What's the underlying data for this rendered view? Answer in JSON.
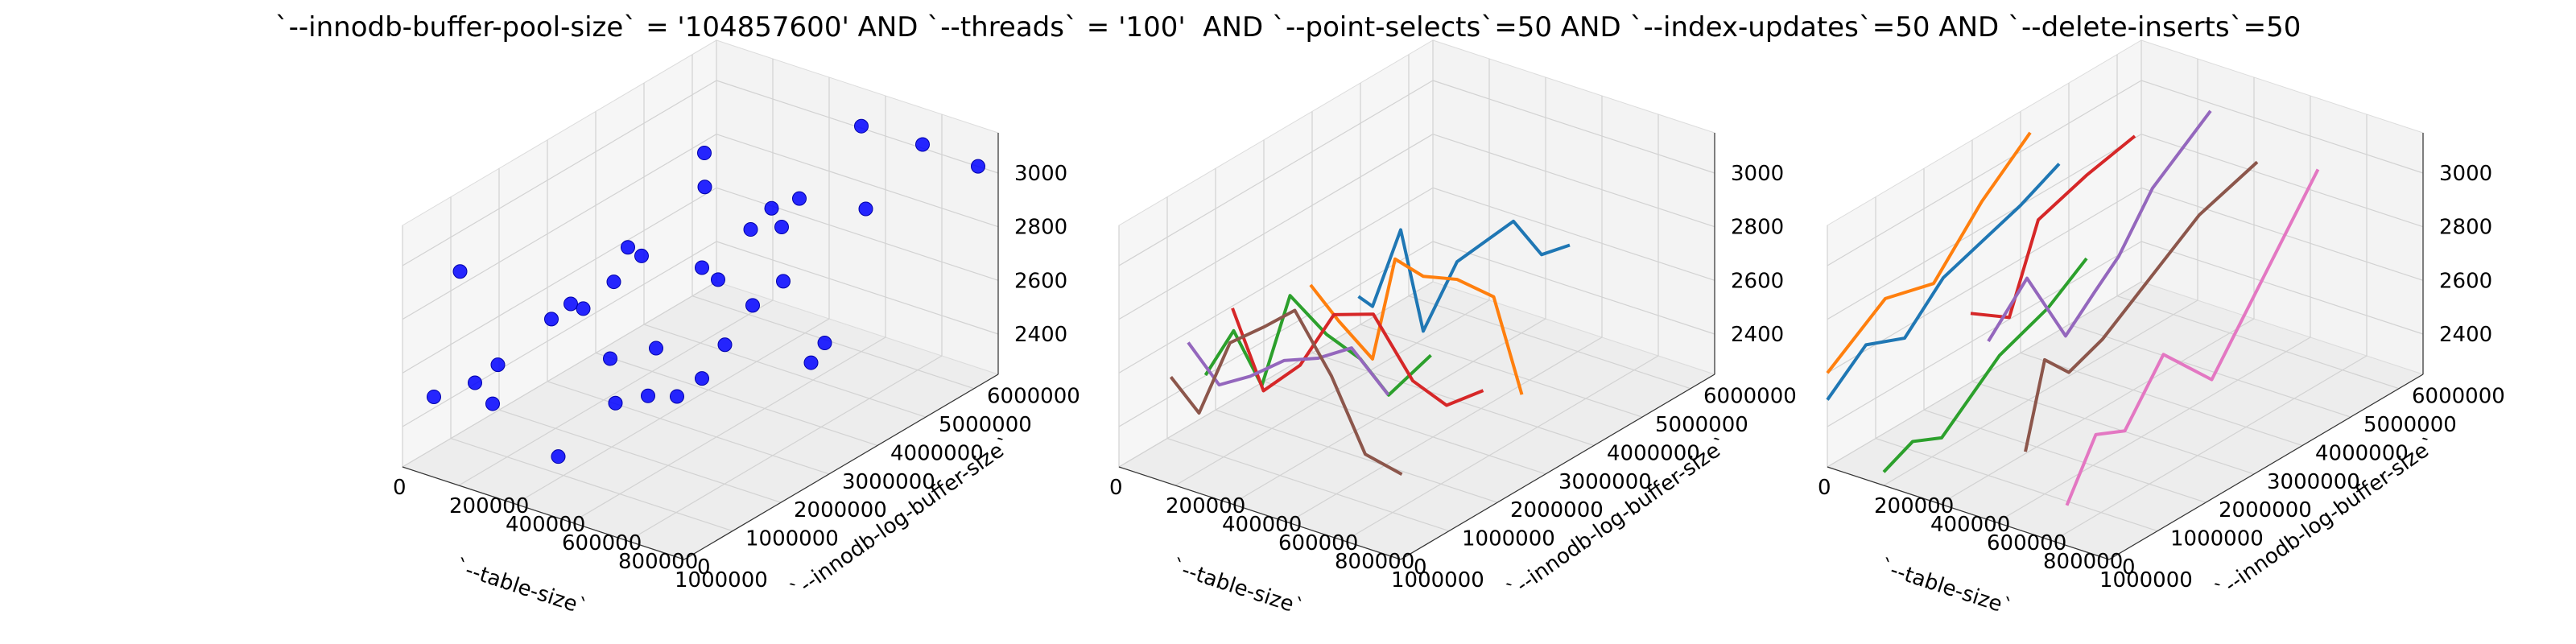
{
  "title": "`--innodb-buffer-pool-size` = '104857600' AND `--threads` = '100'  AND `--point-selects`=50 AND `--index-updates`=50 AND `--delete-inserts`=50",
  "chart_data": [
    {
      "type": "scatter",
      "projection": "3d",
      "xlabel": "`--table-size`",
      "ylabel": "`--innodb-log-buffer-size`",
      "zlabel": "",
      "xticks": [
        "0",
        "200000",
        "400000",
        "600000",
        "800000",
        "1000000"
      ],
      "yticks": [
        "0",
        "1000000",
        "2000000",
        "3000000",
        "4000000",
        "5000000",
        "6000000"
      ],
      "zticks": [
        "2400",
        "2600",
        "2800",
        "3000"
      ],
      "xlim": [
        0,
        1000000
      ],
      "ylim": [
        0,
        6500000
      ],
      "zlim": [
        2250,
        3150
      ],
      "color": "#0000ff",
      "points": [
        [
          50000,
          900000,
          2900
        ],
        [
          120000,
          800000,
          2520
        ],
        [
          200000,
          700000,
          2480
        ],
        [
          100000,
          2500000,
          2570
        ],
        [
          220000,
          2200000,
          2700
        ],
        [
          350000,
          1700000,
          2780
        ],
        [
          480000,
          1500000,
          2660
        ],
        [
          550000,
          1200000,
          2550
        ],
        [
          700000,
          1000000,
          2650
        ],
        [
          820000,
          900000,
          2700
        ],
        [
          30000,
          1800000,
          2450
        ],
        [
          150000,
          3500000,
          2620
        ],
        [
          300000,
          3200000,
          2800
        ],
        [
          420000,
          2800000,
          2540
        ],
        [
          600000,
          2700000,
          2500
        ],
        [
          750000,
          2300000,
          2720
        ],
        [
          900000,
          2000000,
          2950
        ],
        [
          80000,
          4200000,
          2650
        ],
        [
          250000,
          4800000,
          2870
        ],
        [
          400000,
          4200000,
          2640
        ],
        [
          550000,
          4000000,
          2900
        ],
        [
          700000,
          3800000,
          2780
        ],
        [
          850000,
          3500000,
          2560
        ],
        [
          950000,
          3200000,
          2700
        ],
        [
          180000,
          5200000,
          2930
        ],
        [
          350000,
          5600000,
          2740
        ],
        [
          500000,
          5300000,
          2860
        ],
        [
          650000,
          5800000,
          2820
        ],
        [
          800000,
          6100000,
          3080
        ],
        [
          980000,
          6200000,
          3050
        ],
        [
          600000,
          6000000,
          3090
        ],
        [
          300000,
          6100000,
          2600
        ],
        [
          120000,
          5500000,
          2450
        ],
        [
          450000,
          600000,
          2380
        ],
        [
          60000,
          300000,
          2500
        ]
      ]
    },
    {
      "type": "line",
      "projection": "3d",
      "xlabel": "`--table-size`",
      "ylabel": "`--innodb-log-buffer-size`",
      "zlabel": "",
      "xticks": [
        "0",
        "200000",
        "400000",
        "600000",
        "800000",
        "1000000"
      ],
      "yticks": [
        "0",
        "1000000",
        "2000000",
        "3000000",
        "4000000",
        "5000000",
        "6000000"
      ],
      "zticks": [
        "2400",
        "2600",
        "2800",
        "3000"
      ],
      "xlim": [
        0,
        1000000
      ],
      "ylim": [
        0,
        6500000
      ],
      "zlim": [
        2250,
        3150
      ],
      "series": [
        {
          "color": "#1f77b4",
          "x": [
            250000,
            300000,
            400000,
            480000,
            600000,
            700000,
            800000,
            900000,
            1000000
          ],
          "y": [
            3500000,
            3500000,
            3500000,
            3500000,
            3500000,
            3500000,
            3500000,
            3500000,
            3500000
          ],
          "z": [
            2600,
            2580,
            2900,
            2550,
            2850,
            2960,
            3070,
            2980,
            3050
          ]
        },
        {
          "color": "#ff7f0e",
          "x": [
            200000,
            300000,
            420000,
            500000,
            600000,
            720000,
            850000,
            950000
          ],
          "y": [
            2800000,
            2800000,
            2800000,
            2800000,
            2800000,
            2800000,
            2800000,
            2800000
          ],
          "z": [
            2700,
            2600,
            2500,
            2900,
            2870,
            2900,
            2880,
            2550
          ]
        },
        {
          "color": "#2ca02c",
          "x": [
            50000,
            150000,
            250000,
            350000,
            480000,
            600000,
            700000,
            850000
          ],
          "y": [
            1500000,
            1500000,
            1500000,
            1500000,
            1500000,
            1500000,
            1500000,
            1500000
          ],
          "z": [
            2450,
            2650,
            2480,
            2850,
            2750,
            2700,
            2600,
            2800
          ]
        },
        {
          "color": "#d62728",
          "x": [
            60000,
            170000,
            300000,
            420000,
            560000,
            700000,
            820000,
            950000
          ],
          "y": [
            2000000,
            2000000,
            2000000,
            2000000,
            2000000,
            2000000,
            2000000,
            2000000
          ],
          "z": [
            2650,
            2380,
            2520,
            2750,
            2800,
            2600,
            2550,
            2650
          ]
        },
        {
          "color": "#9467bd",
          "x": [
            40000,
            150000,
            260000,
            380000,
            500000,
            620000,
            750000
          ],
          "y": [
            1200000,
            1200000,
            1200000,
            1200000,
            1200000,
            1200000,
            1200000
          ],
          "z": [
            2600,
            2480,
            2550,
            2650,
            2700,
            2780,
            2650
          ]
        },
        {
          "color": "#8c564b",
          "x": [
            30000,
            130000,
            240000,
            360000,
            470000,
            600000,
            720000,
            850000
          ],
          "y": [
            900000,
            900000,
            900000,
            900000,
            900000,
            900000,
            900000,
            900000
          ],
          "z": [
            2500,
            2400,
            2700,
            2800,
            2900,
            2700,
            2450,
            2420
          ]
        }
      ]
    },
    {
      "type": "line",
      "projection": "3d",
      "xlabel": "`--table-size`",
      "ylabel": "`--innodb-log-buffer-size`",
      "zlabel": "",
      "xticks": [
        "0",
        "200000",
        "400000",
        "600000",
        "800000",
        "1000000"
      ],
      "yticks": [
        "0",
        "1000000",
        "2000000",
        "3000000",
        "4000000",
        "5000000",
        "6000000"
      ],
      "zticks": [
        "2400",
        "2600",
        "2800",
        "3000"
      ],
      "xlim": [
        0,
        1000000
      ],
      "ylim": [
        0,
        6500000
      ],
      "zlim": [
        2250,
        3150
      ],
      "series": [
        {
          "color": "#1f77b4",
          "x": [
            0,
            0,
            0,
            0,
            0,
            0,
            0
          ],
          "y": [
            0,
            800000,
            1600000,
            2400000,
            3200000,
            4000000,
            4800000
          ],
          "z": [
            2500,
            2620,
            2560,
            2700,
            2750,
            2800,
            2870
          ]
        },
        {
          "color": "#ff7f0e",
          "x": [
            0,
            0,
            0,
            0,
            0
          ],
          "y": [
            0,
            1200000,
            2200000,
            3200000,
            4200000
          ],
          "z": [
            2600,
            2750,
            2700,
            2900,
            3050
          ]
        },
        {
          "color": "#2ca02c",
          "x": [
            200000,
            200000,
            200000,
            200000,
            200000,
            200000
          ],
          "y": [
            0,
            600000,
            1200000,
            2400000,
            3400000,
            4200000
          ],
          "z": [
            2300,
            2350,
            2300,
            2480,
            2550,
            2650
          ]
        },
        {
          "color": "#d62728",
          "x": [
            200000,
            200000,
            200000,
            200000,
            200000,
            200000
          ],
          "y": [
            1800000,
            2200000,
            2600000,
            3200000,
            4200000,
            5200000
          ],
          "z": [
            2700,
            2650,
            2600,
            2900,
            2960,
            3000
          ]
        },
        {
          "color": "#9467bd",
          "x": [
            400000,
            400000,
            400000,
            400000,
            400000,
            400000,
            400000
          ],
          "y": [
            1000000,
            1800000,
            2600000,
            3200000,
            3700000,
            4400000,
            5600000
          ],
          "z": [
            2750,
            2900,
            2600,
            2700,
            2780,
            2960,
            3120
          ]
        },
        {
          "color": "#8c564b",
          "x": [
            600000,
            600000,
            600000,
            600000,
            600000,
            600000,
            600000
          ],
          "y": [
            600000,
            1000000,
            1500000,
            2200000,
            3000000,
            4200000,
            5400000
          ],
          "z": [
            2450,
            2750,
            2650,
            2700,
            2800,
            2950,
            3020
          ]
        },
        {
          "color": "#e377c2",
          "x": [
            850000,
            850000,
            850000,
            850000,
            850000,
            850000,
            850000
          ],
          "y": [
            0,
            600000,
            1200000,
            2000000,
            3000000,
            4000000,
            5200000
          ],
          "z": [
            2400,
            2600,
            2550,
            2750,
            2550,
            2800,
            3100
          ]
        }
      ]
    }
  ]
}
